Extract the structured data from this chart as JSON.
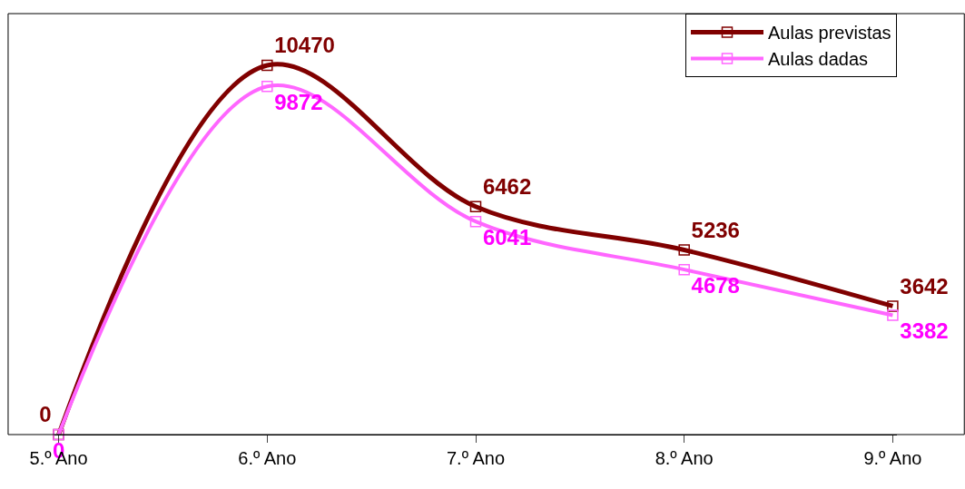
{
  "chart_data": {
    "type": "line",
    "categories": [
      "5.º Ano",
      "6.º Ano",
      "7.º Ano",
      "8.º Ano",
      "9.º Ano"
    ],
    "series": [
      {
        "name": "Aulas previstas",
        "color": "#800000",
        "values": [
          0,
          10470,
          6462,
          5236,
          3642
        ]
      },
      {
        "name": "Aulas dadas",
        "color": "#ff66ff",
        "values": [
          0,
          9872,
          6041,
          4678,
          3382
        ]
      }
    ],
    "data_labels": true,
    "legend": "top right",
    "marker": "square",
    "line_style": "solid",
    "grid": false
  }
}
